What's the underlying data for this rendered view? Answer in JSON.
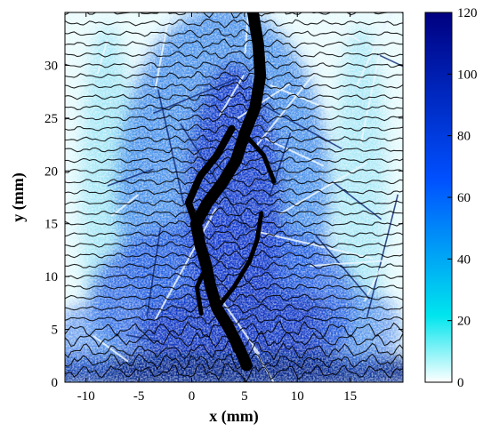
{
  "chart_data": {
    "type": "heatmap",
    "title": "",
    "xlabel": "x (mm)",
    "ylabel": "y (mm)",
    "xlim": [
      -12,
      20
    ],
    "ylim": [
      0,
      35
    ],
    "xticks": [
      -10,
      -5,
      0,
      5,
      10,
      15
    ],
    "yticks": [
      0,
      5,
      10,
      15,
      20,
      25,
      30
    ],
    "colorbar": {
      "range": [
        0,
        120
      ],
      "ticks": [
        0,
        20,
        40,
        60,
        80,
        100,
        120
      ],
      "colors": [
        "#ffffff",
        "#00e5ee",
        "#0050ff",
        "#000080"
      ]
    },
    "contour_line_color": "#000000",
    "crack_color": "#000000",
    "contour_spacing_mm": 1,
    "main_crack_path": [
      [
        5.2,
        1.6
      ],
      [
        4.6,
        3
      ],
      [
        3.6,
        5
      ],
      [
        2.4,
        7
      ],
      [
        1.8,
        9
      ],
      [
        1.4,
        11
      ],
      [
        0.8,
        13
      ],
      [
        0.4,
        15
      ],
      [
        1.5,
        17
      ],
      [
        3,
        19
      ],
      [
        4.2,
        21
      ],
      [
        5,
        23.5
      ],
      [
        6,
        26
      ],
      [
        6.5,
        29
      ],
      [
        6.3,
        32
      ],
      [
        5.8,
        35
      ]
    ]
  }
}
